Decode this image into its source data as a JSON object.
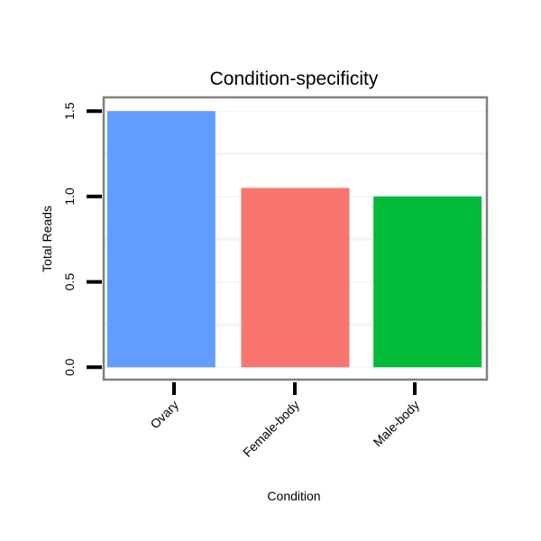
{
  "chart_data": {
    "type": "bar",
    "title": "Condition-specificity",
    "xlabel": "Condition",
    "ylabel": "Total Reads",
    "categories": [
      "Ovary",
      "Female-body",
      "Male-body"
    ],
    "values": [
      1.5,
      1.05,
      1.0
    ],
    "colors": [
      "#619CFF",
      "#F8766D",
      "#00BA38"
    ],
    "ylim": [
      -0.09,
      1.58
    ],
    "yticks": [
      0.0,
      0.5,
      1.0,
      1.5
    ],
    "ytick_labels": [
      "0.0",
      "0.5",
      "1.0",
      "1.5"
    ],
    "grid": true,
    "legend": "none"
  }
}
